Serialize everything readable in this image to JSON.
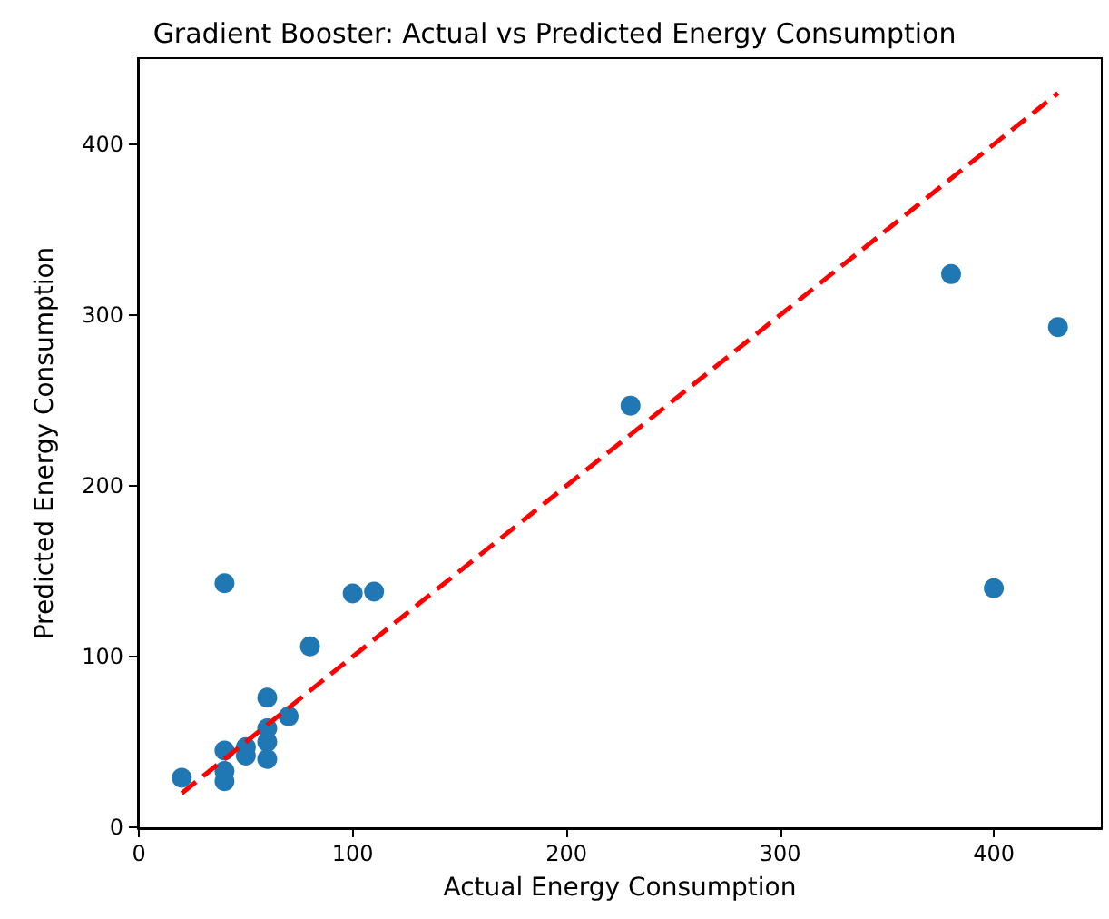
{
  "chart_data": {
    "type": "scatter",
    "title": "Gradient Booster: Actual vs Predicted Energy Consumption",
    "xlabel": "Actual Energy Consumption",
    "ylabel": "Predicted Energy Consumption",
    "series": [
      {
        "type": "scatter",
        "color": "#1f77b4",
        "marker": "circle",
        "x": [
          20,
          40,
          40,
          40,
          40,
          50,
          50,
          60,
          60,
          60,
          60,
          70,
          80,
          100,
          110,
          230,
          380,
          400,
          430
        ],
        "values": [
          29,
          143,
          45,
          33,
          27,
          47,
          42,
          76,
          58,
          50,
          40,
          65,
          106,
          137,
          138,
          247,
          324,
          140,
          293
        ]
      },
      {
        "type": "line",
        "color": "#ff0000",
        "line_style": "dashed",
        "marker": "none",
        "x": [
          20,
          430
        ],
        "values": [
          20,
          430
        ]
      }
    ],
    "xlim": [
      -0.5,
      450.5
    ],
    "ylim": [
      -0.5,
      450.5
    ],
    "xticks": [
      0,
      100,
      200,
      300,
      400
    ],
    "yticks": [
      0,
      100,
      200,
      300,
      400
    ],
    "grid": false
  }
}
